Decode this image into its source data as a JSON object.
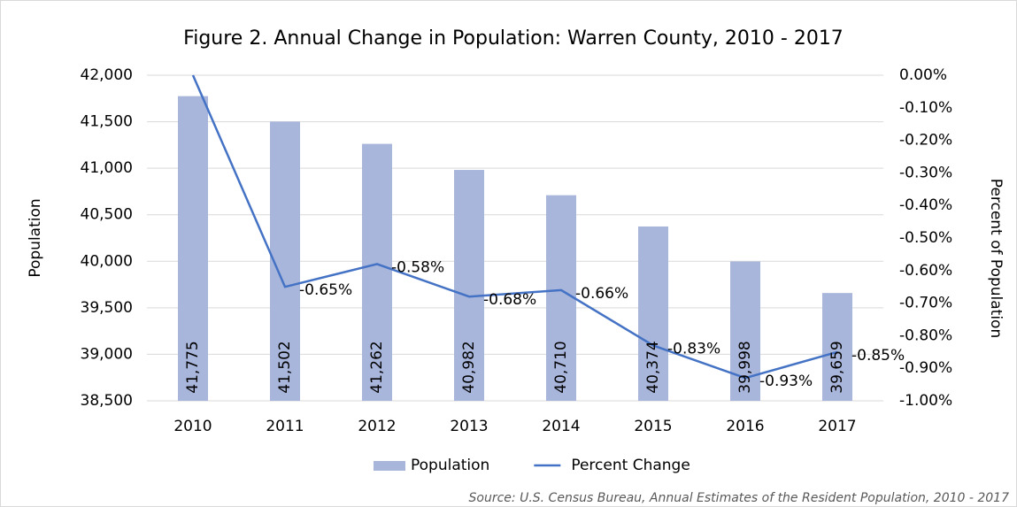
{
  "chart_data": {
    "type": "bar",
    "title": "Figure 2. Annual Change in Population: Warren County, 2010 - 2017",
    "y_label": "Population",
    "y2_label": "Percent of Population",
    "source": "Source: U.S. Census Bureau, Annual Estimates of the Resident Population, 2010 - 2017",
    "categories": [
      "2010",
      "2011",
      "2012",
      "2013",
      "2014",
      "2015",
      "2016",
      "2017"
    ],
    "series": [
      {
        "name": "Population",
        "type": "bar",
        "color": "#a9b6dc",
        "values": [
          41775,
          41502,
          41262,
          40982,
          40710,
          40374,
          39998,
          39659
        ],
        "value_labels": [
          "41,775",
          "41,502",
          "41,262",
          "40,982",
          "40,710",
          "40,374",
          "39,998",
          "39,659"
        ]
      },
      {
        "name": "Percent Change",
        "type": "line",
        "axis": "y2",
        "color": "#4472c4",
        "values": [
          0,
          -0.65,
          -0.58,
          -0.68,
          -0.66,
          -0.83,
          -0.93,
          -0.85
        ],
        "value_labels": [
          null,
          "-0.65%",
          "-0.58%",
          "-0.68%",
          "-0.66%",
          "-0.83%",
          "-0.93%",
          "-0.85%"
        ]
      }
    ],
    "ylim": [
      38500,
      42000
    ],
    "yticks": [
      {
        "value": 38500,
        "label": "38,500"
      },
      {
        "value": 39000,
        "label": "39,000"
      },
      {
        "value": 39500,
        "label": "39,500"
      },
      {
        "value": 40000,
        "label": "40,000"
      },
      {
        "value": 40500,
        "label": "40,500"
      },
      {
        "value": 41000,
        "label": "41,000"
      },
      {
        "value": 41500,
        "label": "41,500"
      },
      {
        "value": 42000,
        "label": "42,000"
      }
    ],
    "y2lim": [
      -1.0,
      0
    ],
    "y2ticks": [
      {
        "value": -1.0,
        "label": "-1.00%"
      },
      {
        "value": -0.9,
        "label": "-0.90%"
      },
      {
        "value": -0.8,
        "label": "-0.80%"
      },
      {
        "value": -0.7,
        "label": "-0.70%"
      },
      {
        "value": -0.6,
        "label": "-0.60%"
      },
      {
        "value": -0.5,
        "label": "-0.50%"
      },
      {
        "value": -0.4,
        "label": "-0.40%"
      },
      {
        "value": -0.3,
        "label": "-0.30%"
      },
      {
        "value": -0.2,
        "label": "-0.20%"
      },
      {
        "value": -0.1,
        "label": "-0.10%"
      },
      {
        "value": 0,
        "label": "0.00%"
      }
    ],
    "grid": true,
    "legend": "bottom"
  }
}
